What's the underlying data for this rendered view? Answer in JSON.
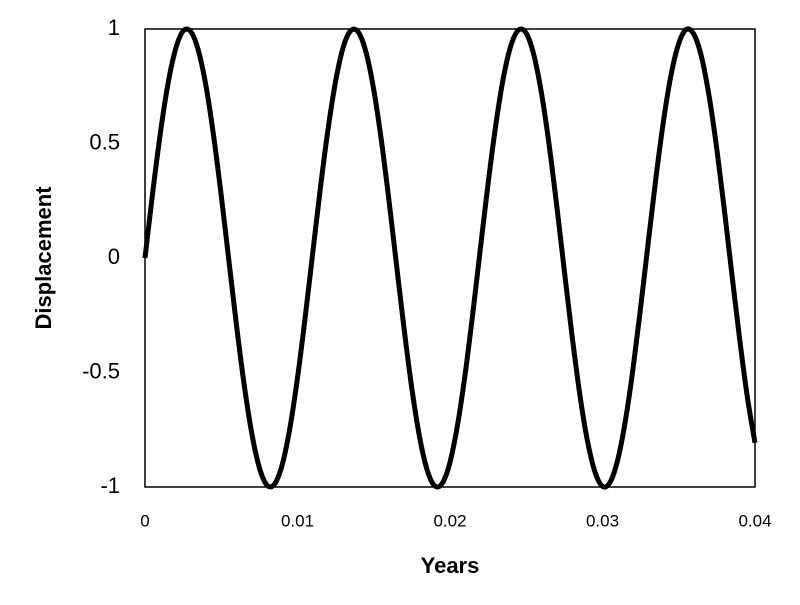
{
  "chart_data": {
    "type": "line",
    "xlabel": "Years",
    "ylabel": "Displacement",
    "x": [
      0,
      0.0005,
      0.001,
      0.0015,
      0.002,
      0.0025,
      0.003,
      0.0035,
      0.004,
      0.0045,
      0.005,
      0.0055,
      0.006,
      0.0065,
      0.007,
      0.0075,
      0.008,
      0.0085,
      0.009,
      0.0095,
      0.01,
      0.0105,
      0.011,
      0.0115,
      0.012,
      0.0125,
      0.013,
      0.0135,
      0.014,
      0.0145,
      0.015,
      0.0155,
      0.016,
      0.0165,
      0.017,
      0.0175,
      0.018,
      0.0185,
      0.019,
      0.0195,
      0.02,
      0.0205,
      0.021,
      0.0215,
      0.022,
      0.0225,
      0.023,
      0.0235,
      0.024,
      0.0245,
      0.025,
      0.0255,
      0.026,
      0.0265,
      0.027,
      0.0275,
      0.028,
      0.0285,
      0.029,
      0.0295,
      0.03,
      0.0305,
      0.031,
      0.0315,
      0.032,
      0.0325,
      0.033,
      0.0335,
      0.034,
      0.0345,
      0.035,
      0.0355,
      0.036,
      0.0365,
      0.037,
      0.0375,
      0.038,
      0.0385,
      0.039,
      0.0395,
      0.04
    ],
    "series": [
      {
        "color": "#000000",
        "values": [
          0,
          0.283,
          0.542,
          0.758,
          0.911,
          0.991,
          0.989,
          0.906,
          0.751,
          0.533,
          0.272,
          -0.011,
          -0.294,
          -0.552,
          -0.765,
          -0.916,
          -0.992,
          -0.987,
          -0.902,
          -0.743,
          -0.523,
          -0.261,
          0.023,
          0.305,
          0.561,
          0.772,
          0.921,
          0.993,
          0.985,
          0.897,
          0.735,
          0.513,
          0.25,
          -0.034,
          -0.315,
          -0.571,
          -0.78,
          -0.925,
          -0.995,
          -0.983,
          -0.892,
          -0.727,
          -0.504,
          -0.239,
          0.046,
          0.326,
          0.58,
          0.787,
          0.929,
          0.996,
          0.981,
          0.886,
          0.719,
          0.494,
          0.228,
          -0.057,
          -0.337,
          -0.59,
          -0.794,
          -0.933,
          -0.997,
          -0.979,
          -0.881,
          -0.711,
          -0.484,
          -0.216,
          0.068,
          0.348,
          0.599,
          0.801,
          0.937,
          0.998,
          0.976,
          0.876,
          0.703,
          0.474,
          0.205,
          -0.08,
          -0.358,
          -0.608,
          -0.807
        ]
      }
    ],
    "xlim": [
      0,
      0.04
    ],
    "xticks": [
      0,
      0.01,
      0.02,
      0.03,
      0.04
    ],
    "ylim": [
      -1,
      1
    ],
    "yticks": [
      -1,
      -0.5,
      0,
      0.5,
      1
    ],
    "grid": false
  }
}
